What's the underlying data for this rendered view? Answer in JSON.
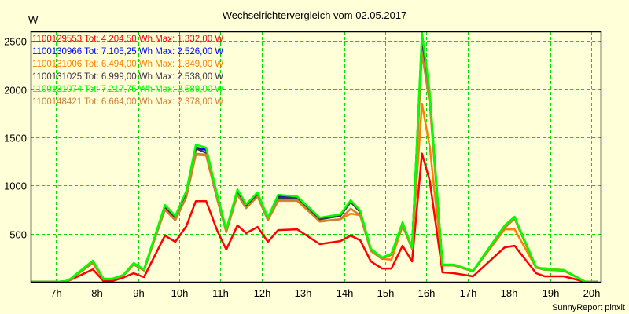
{
  "chart_data": {
    "type": "line",
    "title": "Wechselrichtervergleich vom 02.05.2017",
    "ylabel": "W",
    "xlabel": "",
    "footer": "SunnyReport pinxit",
    "ylim": [
      0,
      2600
    ],
    "xlim": [
      6.39,
      20.23
    ],
    "grid": true,
    "legend_placement": "top-left",
    "yticks": [
      500,
      1000,
      1500,
      2000,
      2500
    ],
    "ytick_labels": [
      "500",
      "1000",
      "1500",
      "2000",
      "2500"
    ],
    "xticks": [
      7,
      8,
      9,
      10,
      11,
      12,
      13,
      14,
      15,
      16,
      17,
      18,
      19,
      20
    ],
    "xtick_labels": [
      "7h",
      "8h",
      "9h",
      "10h",
      "11h",
      "12h",
      "13h",
      "14h",
      "15h",
      "16h",
      "17h",
      "18h",
      "19h",
      "20h"
    ],
    "x": [
      6.39,
      7.0,
      7.23,
      7.36,
      7.9,
      8.16,
      8.37,
      8.64,
      8.89,
      9.14,
      9.65,
      9.9,
      10.17,
      10.4,
      10.65,
      10.93,
      11.14,
      11.41,
      11.62,
      11.9,
      12.15,
      12.4,
      12.86,
      13.41,
      13.91,
      14.16,
      14.39,
      14.65,
      14.92,
      15.15,
      15.42,
      15.65,
      15.89,
      16.08,
      16.39,
      16.66,
      17.13,
      17.9,
      18.14,
      18.66,
      18.87,
      19.33,
      19.86,
      20.15
    ],
    "series": [
      {
        "name": "1100129553",
        "legend": "1100129553 Tot: 4.204,50 Wh Max: 1.332,00 W",
        "color": "#ff0000",
        "values": [
          0,
          0,
          0,
          20,
          130,
          8,
          8,
          45,
          90,
          49,
          480,
          415,
          578,
          838,
          838,
          521,
          334,
          586,
          505,
          570,
          415,
          537,
          545,
          391,
          423,
          480,
          431,
          212,
          138,
          138,
          374,
          212,
          1332,
          1050,
          98,
          90,
          57,
          358,
          374,
          90,
          57,
          57,
          0,
          0
        ]
      },
      {
        "name": "1100130966",
        "legend": "1100130966 Tot: 7.105,25 Wh Max: 2.526,00 W",
        "color": "#0000ff",
        "values": [
          0,
          0,
          5,
          30,
          210,
          30,
          30,
          70,
          190,
          125,
          780,
          670,
          925,
          1395,
          1370,
          870,
          535,
          945,
          795,
          915,
          655,
          890,
          880,
          655,
          690,
          835,
          730,
          335,
          248,
          290,
          605,
          352,
          2526,
          1940,
          176,
          176,
          112,
          575,
          665,
          150,
          128,
          120,
          0,
          0
        ]
      },
      {
        "name": "1100131006",
        "legend": "1100131006 Tot: 6.494,00 Wh Max: 1.849,00 W",
        "color": "#ff8000",
        "values": [
          0,
          0,
          5,
          26,
          195,
          26,
          26,
          64,
          180,
          118,
          750,
          640,
          880,
          1320,
          1310,
          840,
          520,
          910,
          765,
          890,
          640,
          840,
          840,
          630,
          650,
          708,
          690,
          320,
          238,
          230,
          580,
          345,
          1849,
          1400,
          170,
          170,
          108,
          545,
          545,
          145,
          140,
          122,
          0,
          0
        ]
      },
      {
        "name": "1100131025",
        "legend": "1100131025 Tot: 6.999,00 Wh Max: 2.538,00 W",
        "color": "#403048",
        "values": [
          0,
          0,
          5,
          28,
          205,
          28,
          28,
          68,
          185,
          122,
          770,
          660,
          910,
          1385,
          1340,
          860,
          530,
          935,
          785,
          905,
          650,
          875,
          870,
          650,
          685,
          830,
          725,
          330,
          245,
          288,
          600,
          350,
          2538,
          1900,
          174,
          174,
          110,
          570,
          660,
          148,
          126,
          118,
          0,
          0
        ]
      },
      {
        "name": "1100131074",
        "legend": "1100131074 Tot: 7.217,75 Wh Max: 2.589,00 W",
        "color": "#00ff00",
        "values": [
          0,
          0,
          5,
          33,
          220,
          33,
          33,
          73,
          195,
          130,
          798,
          684,
          944,
          1424,
          1392,
          887,
          545,
          960,
          806,
          928,
          667,
          904,
          887,
          667,
          700,
          847,
          741,
          342,
          252,
          293,
          619,
          358,
          2589,
          1970,
          179,
          179,
          114,
          586,
          676,
          155,
          130,
          122,
          0,
          0
        ]
      },
      {
        "name": "1100148421",
        "legend": "1100148421 Tot: 6.664,00 Wh Max: 2.378,00 W",
        "color": "#cc8030",
        "values": [
          0,
          0,
          5,
          26,
          195,
          26,
          26,
          64,
          180,
          118,
          750,
          640,
          880,
          1330,
          1320,
          840,
          515,
          905,
          765,
          885,
          640,
          850,
          850,
          625,
          650,
          760,
          690,
          320,
          240,
          280,
          585,
          345,
          2378,
          1850,
          170,
          170,
          108,
          560,
          655,
          145,
          125,
          115,
          0,
          0
        ]
      }
    ],
    "draw_order": [
      0,
      1,
      2,
      3,
      5,
      4
    ]
  },
  "colors": {
    "background": "#ffffd8",
    "grid": "#00dd00",
    "axis": "#000000"
  }
}
